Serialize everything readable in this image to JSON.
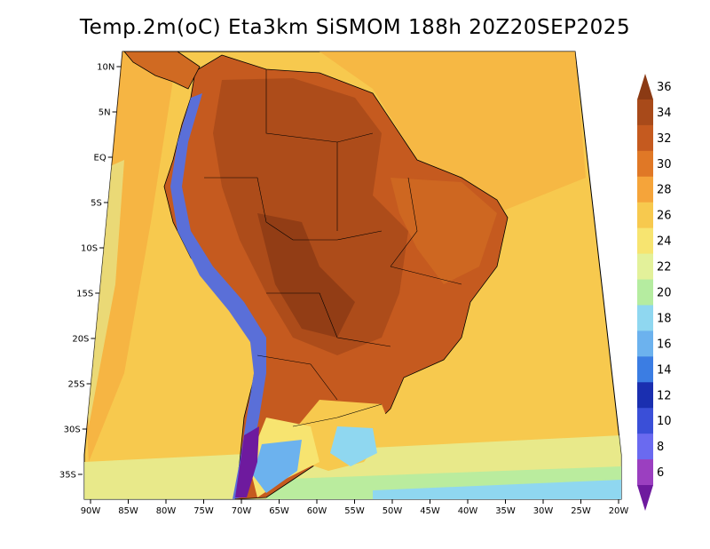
{
  "title": "Temp.2m(oC) Eta3km SiSMOM 188h 20Z20SEP2025",
  "map": {
    "lat_labels": [
      "10N",
      "5N",
      "EQ",
      "5S",
      "10S",
      "15S",
      "20S",
      "25S",
      "30S",
      "35S"
    ],
    "lon_labels": [
      "90W",
      "85W",
      "80W",
      "75W",
      "70W",
      "65W",
      "60W",
      "55W",
      "50W",
      "45W",
      "40W",
      "35W",
      "30W",
      "25W",
      "20W"
    ],
    "ocean_color": "#f7c94e",
    "land_hot_color": "#b8541f",
    "land_warm_color": "#d06a22",
    "andes_cold_color": "#5a6fd8"
  },
  "colorbar": {
    "labels": [
      "36",
      "34",
      "32",
      "30",
      "28",
      "26",
      "24",
      "22",
      "20",
      "18",
      "16",
      "14",
      "12",
      "10",
      "8",
      "6"
    ],
    "colors": [
      "#8b3a14",
      "#a84a1a",
      "#c55a1f",
      "#e07826",
      "#f5a43a",
      "#f7c94e",
      "#f7e470",
      "#e3f19a",
      "#b5eca0",
      "#8fd7f0",
      "#6cb2ee",
      "#3b7de3",
      "#1a2fb0",
      "#3a4fd8",
      "#6a6af0",
      "#9b3fc0",
      "#6e1a9e"
    ]
  }
}
